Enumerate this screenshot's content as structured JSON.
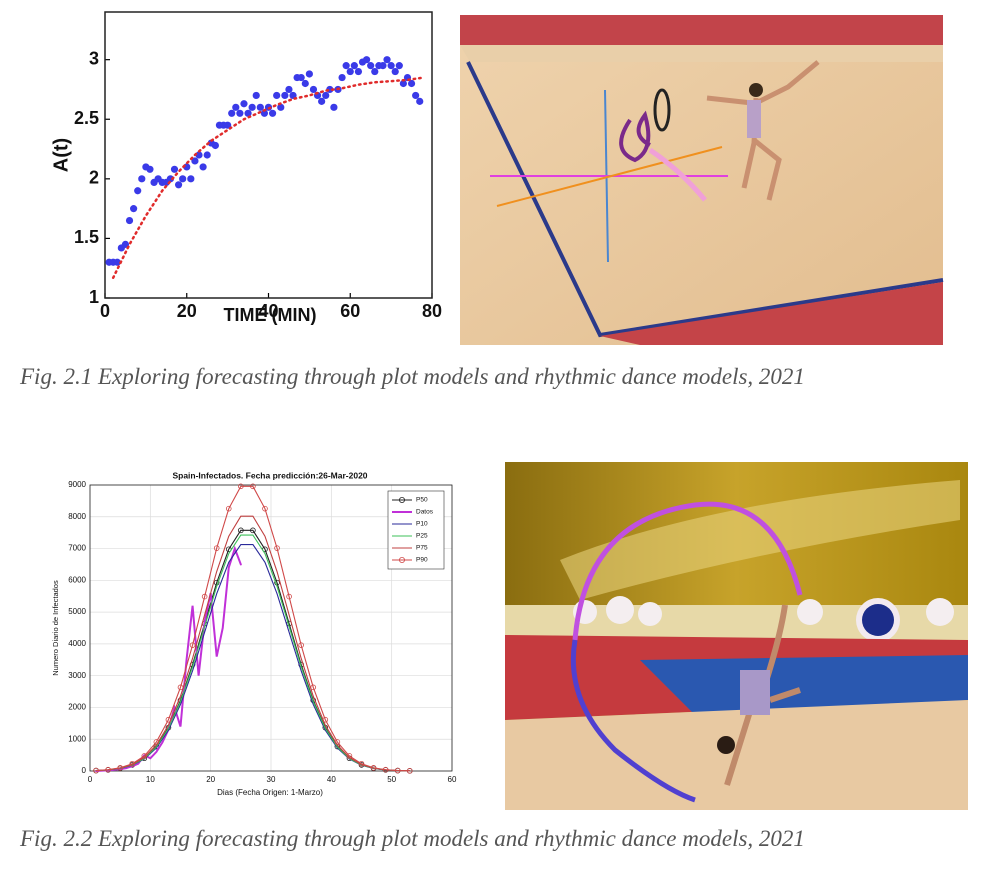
{
  "chart_data": [
    {
      "type": "scatter",
      "xlabel": "TIME (MIN)",
      "ylabel": "A(t)",
      "xlim": [
        0,
        80
      ],
      "ylim": [
        1,
        3.4
      ],
      "xticks": [
        0,
        20,
        40,
        60,
        80
      ],
      "yticks": [
        1,
        1.5,
        2,
        2.5,
        3
      ],
      "grid": false,
      "series": [
        {
          "color": "#3a3ae8",
          "style": "markers",
          "x": [
            1,
            2,
            3,
            4,
            5,
            6,
            7,
            8,
            9,
            10,
            11,
            12,
            13,
            14,
            15,
            16,
            17,
            18,
            19,
            20,
            21,
            22,
            23,
            24,
            25,
            26,
            27,
            28,
            29,
            30,
            31,
            32,
            33,
            34,
            35,
            36,
            37,
            38,
            39,
            40,
            41,
            42,
            43,
            44,
            45,
            46,
            47,
            48,
            49,
            50,
            51,
            52,
            53,
            54,
            55,
            56,
            57,
            58,
            59,
            60,
            61,
            62,
            63,
            64,
            65,
            66,
            67,
            68,
            69,
            70,
            71,
            72,
            73,
            74,
            75,
            76,
            77
          ],
          "values": [
            1.3,
            1.3,
            1.3,
            1.42,
            1.45,
            1.65,
            1.75,
            1.9,
            2.0,
            2.1,
            2.08,
            1.97,
            2.0,
            1.97,
            1.97,
            2.0,
            2.08,
            1.95,
            2.0,
            2.1,
            2.0,
            2.15,
            2.2,
            2.1,
            2.2,
            2.3,
            2.28,
            2.45,
            2.45,
            2.45,
            2.55,
            2.6,
            2.55,
            2.63,
            2.55,
            2.6,
            2.7,
            2.6,
            2.55,
            2.6,
            2.55,
            2.7,
            2.6,
            2.7,
            2.75,
            2.7,
            2.85,
            2.85,
            2.8,
            2.88,
            2.75,
            2.7,
            2.65,
            2.7,
            2.75,
            2.6,
            2.75,
            2.85,
            2.95,
            2.9,
            2.95,
            2.9,
            2.98,
            3.0,
            2.95,
            2.9,
            2.95,
            2.95,
            3.0,
            2.95,
            2.9,
            2.95,
            2.8,
            2.85,
            2.8,
            2.7,
            2.65
          ]
        },
        {
          "color": "#e02b2b",
          "style": "dotted",
          "x": [
            2,
            6,
            10,
            14,
            18,
            22,
            26,
            30,
            34,
            38,
            42,
            46,
            50,
            54,
            58,
            62,
            66,
            70,
            74,
            78
          ],
          "values": [
            1.17,
            1.45,
            1.69,
            1.9,
            2.06,
            2.2,
            2.32,
            2.41,
            2.5,
            2.56,
            2.62,
            2.67,
            2.7,
            2.74,
            2.76,
            2.79,
            2.81,
            2.82,
            2.83,
            2.85
          ]
        }
      ]
    },
    {
      "type": "line",
      "title": "Spain-Infectados. Fecha predicción:26-Mar-2020",
      "xlabel": "Dias (Fecha Origen: 1-Marzo)",
      "ylabel": "Numero Diario de Infectados",
      "xlim": [
        0,
        60
      ],
      "ylim": [
        0,
        9000
      ],
      "xticks": [
        0,
        10,
        20,
        30,
        40,
        50,
        60
      ],
      "yticks": [
        0,
        1000,
        2000,
        3000,
        4000,
        5000,
        6000,
        7000,
        8000,
        9000
      ],
      "grid": true,
      "legend": "upper right",
      "x": [
        1,
        3,
        5,
        7,
        9,
        11,
        13,
        15,
        17,
        19,
        21,
        23,
        25,
        27,
        29,
        31,
        33,
        35,
        37,
        39,
        41,
        43,
        45,
        47,
        49,
        51,
        53
      ],
      "series": [
        {
          "name": "P50",
          "color": "#222222",
          "style": "solid",
          "marker": "circle",
          "values": [
            13,
            34,
            85,
            192,
            401,
            770,
            1364,
            2225,
            3348,
            4640,
            5928,
            6978,
            7573,
            7573,
            6978,
            5928,
            4640,
            3348,
            2225,
            1364,
            770,
            401,
            192,
            85,
            34,
            13,
            5
          ]
        },
        {
          "name": "Datos",
          "color": "#c030d8",
          "style": "thick",
          "x": [
            1,
            2,
            3,
            4,
            5,
            6,
            7,
            8,
            9,
            10,
            11,
            12,
            13,
            14,
            15,
            16,
            17,
            18,
            19,
            20,
            21,
            22,
            23,
            24,
            25
          ],
          "values": [
            0,
            10,
            20,
            40,
            60,
            90,
            150,
            230,
            500,
            400,
            600,
            900,
            1300,
            2000,
            1400,
            3500,
            5200,
            3000,
            4700,
            5600,
            3600,
            4500,
            6400,
            7000,
            6500
          ]
        },
        {
          "name": "P10",
          "color": "#2a2a9a",
          "style": "solid",
          "values": [
            12,
            32,
            80,
            181,
            377,
            725,
            1284,
            2094,
            3151,
            4367,
            5579,
            6568,
            7127,
            7127,
            6568,
            5579,
            4367,
            3151,
            2094,
            1284,
            725,
            377,
            181,
            80,
            32,
            12,
            4
          ]
        },
        {
          "name": "P25",
          "color": "#3cc05a",
          "style": "solid",
          "values": [
            13,
            34,
            83,
            188,
            393,
            755,
            1337,
            2182,
            3282,
            4549,
            5812,
            6842,
            7424,
            7424,
            6842,
            5812,
            4549,
            3282,
            2182,
            1337,
            755,
            393,
            188,
            83,
            34,
            13,
            5
          ]
        },
        {
          "name": "P75",
          "color": "#c04040",
          "style": "solid",
          "values": [
            14,
            36,
            90,
            203,
            424,
            816,
            1444,
            2356,
            3545,
            4913,
            6277,
            7389,
            8018,
            8018,
            7389,
            6277,
            4913,
            3545,
            2356,
            1444,
            816,
            424,
            203,
            90,
            36,
            14,
            5
          ]
        },
        {
          "name": "P90",
          "color": "#d04848",
          "style": "solid",
          "marker": "circle",
          "values": [
            15,
            41,
            100,
            227,
            474,
            911,
            1614,
            2633,
            3960,
            5489,
            7013,
            8255,
            8959,
            8959,
            8255,
            7013,
            5489,
            3960,
            2633,
            1614,
            911,
            474,
            227,
            100,
            41,
            15,
            5
          ]
        }
      ]
    }
  ],
  "captions": [
    "Fig. 2.1 Exploring forecasting through plot models and rhythmic dance models, 2021",
    "Fig. 2.2 Exploring forecasting through plot models and rhythmic dance models, 2021"
  ]
}
